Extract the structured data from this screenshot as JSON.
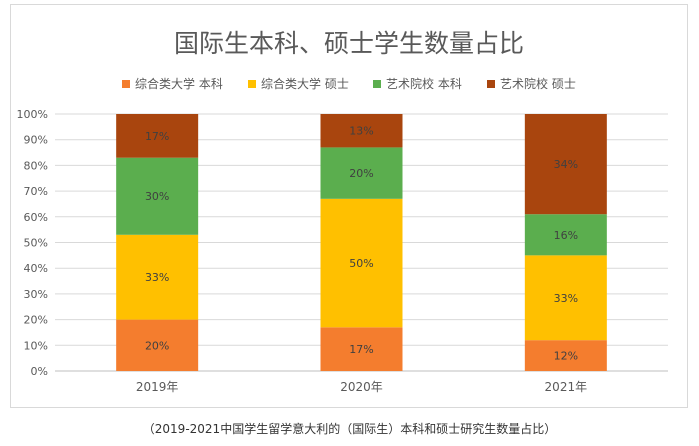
{
  "caption": "（2019-2021中国学生留学意大利的（国际生）本科和硕士研究生数量占比）",
  "chart_data": {
    "type": "bar",
    "stacked": true,
    "title": "国际生本科、硕士学生数量占比",
    "categories": [
      "2019年",
      "2020年",
      "2021年"
    ],
    "series": [
      {
        "name": "综合类大学 本科",
        "color": "#F47D2E",
        "values": [
          20,
          17,
          12
        ]
      },
      {
        "name": "综合类大学 硕士",
        "color": "#FFC000",
        "values": [
          33,
          50,
          33
        ]
      },
      {
        "name": "艺术院校 本科",
        "color": "#5BAE4E",
        "values": [
          30,
          20,
          16
        ]
      },
      {
        "name": "艺术院校 硕士",
        "color": "#A9450E",
        "values": [
          17,
          13,
          34
        ]
      }
    ],
    "data_labels": [
      [
        "20%",
        "17%",
        "12%"
      ],
      [
        "33%",
        "50%",
        "33%"
      ],
      [
        "30%",
        "20%",
        "16%"
      ],
      [
        "17%",
        "13%",
        "34%"
      ]
    ],
    "ylim": [
      0,
      100
    ],
    "yticks": [
      "0%",
      "10%",
      "20%",
      "30%",
      "40%",
      "50%",
      "60%",
      "70%",
      "80%",
      "90%",
      "100%"
    ],
    "grid": true,
    "legend_position": "top"
  }
}
